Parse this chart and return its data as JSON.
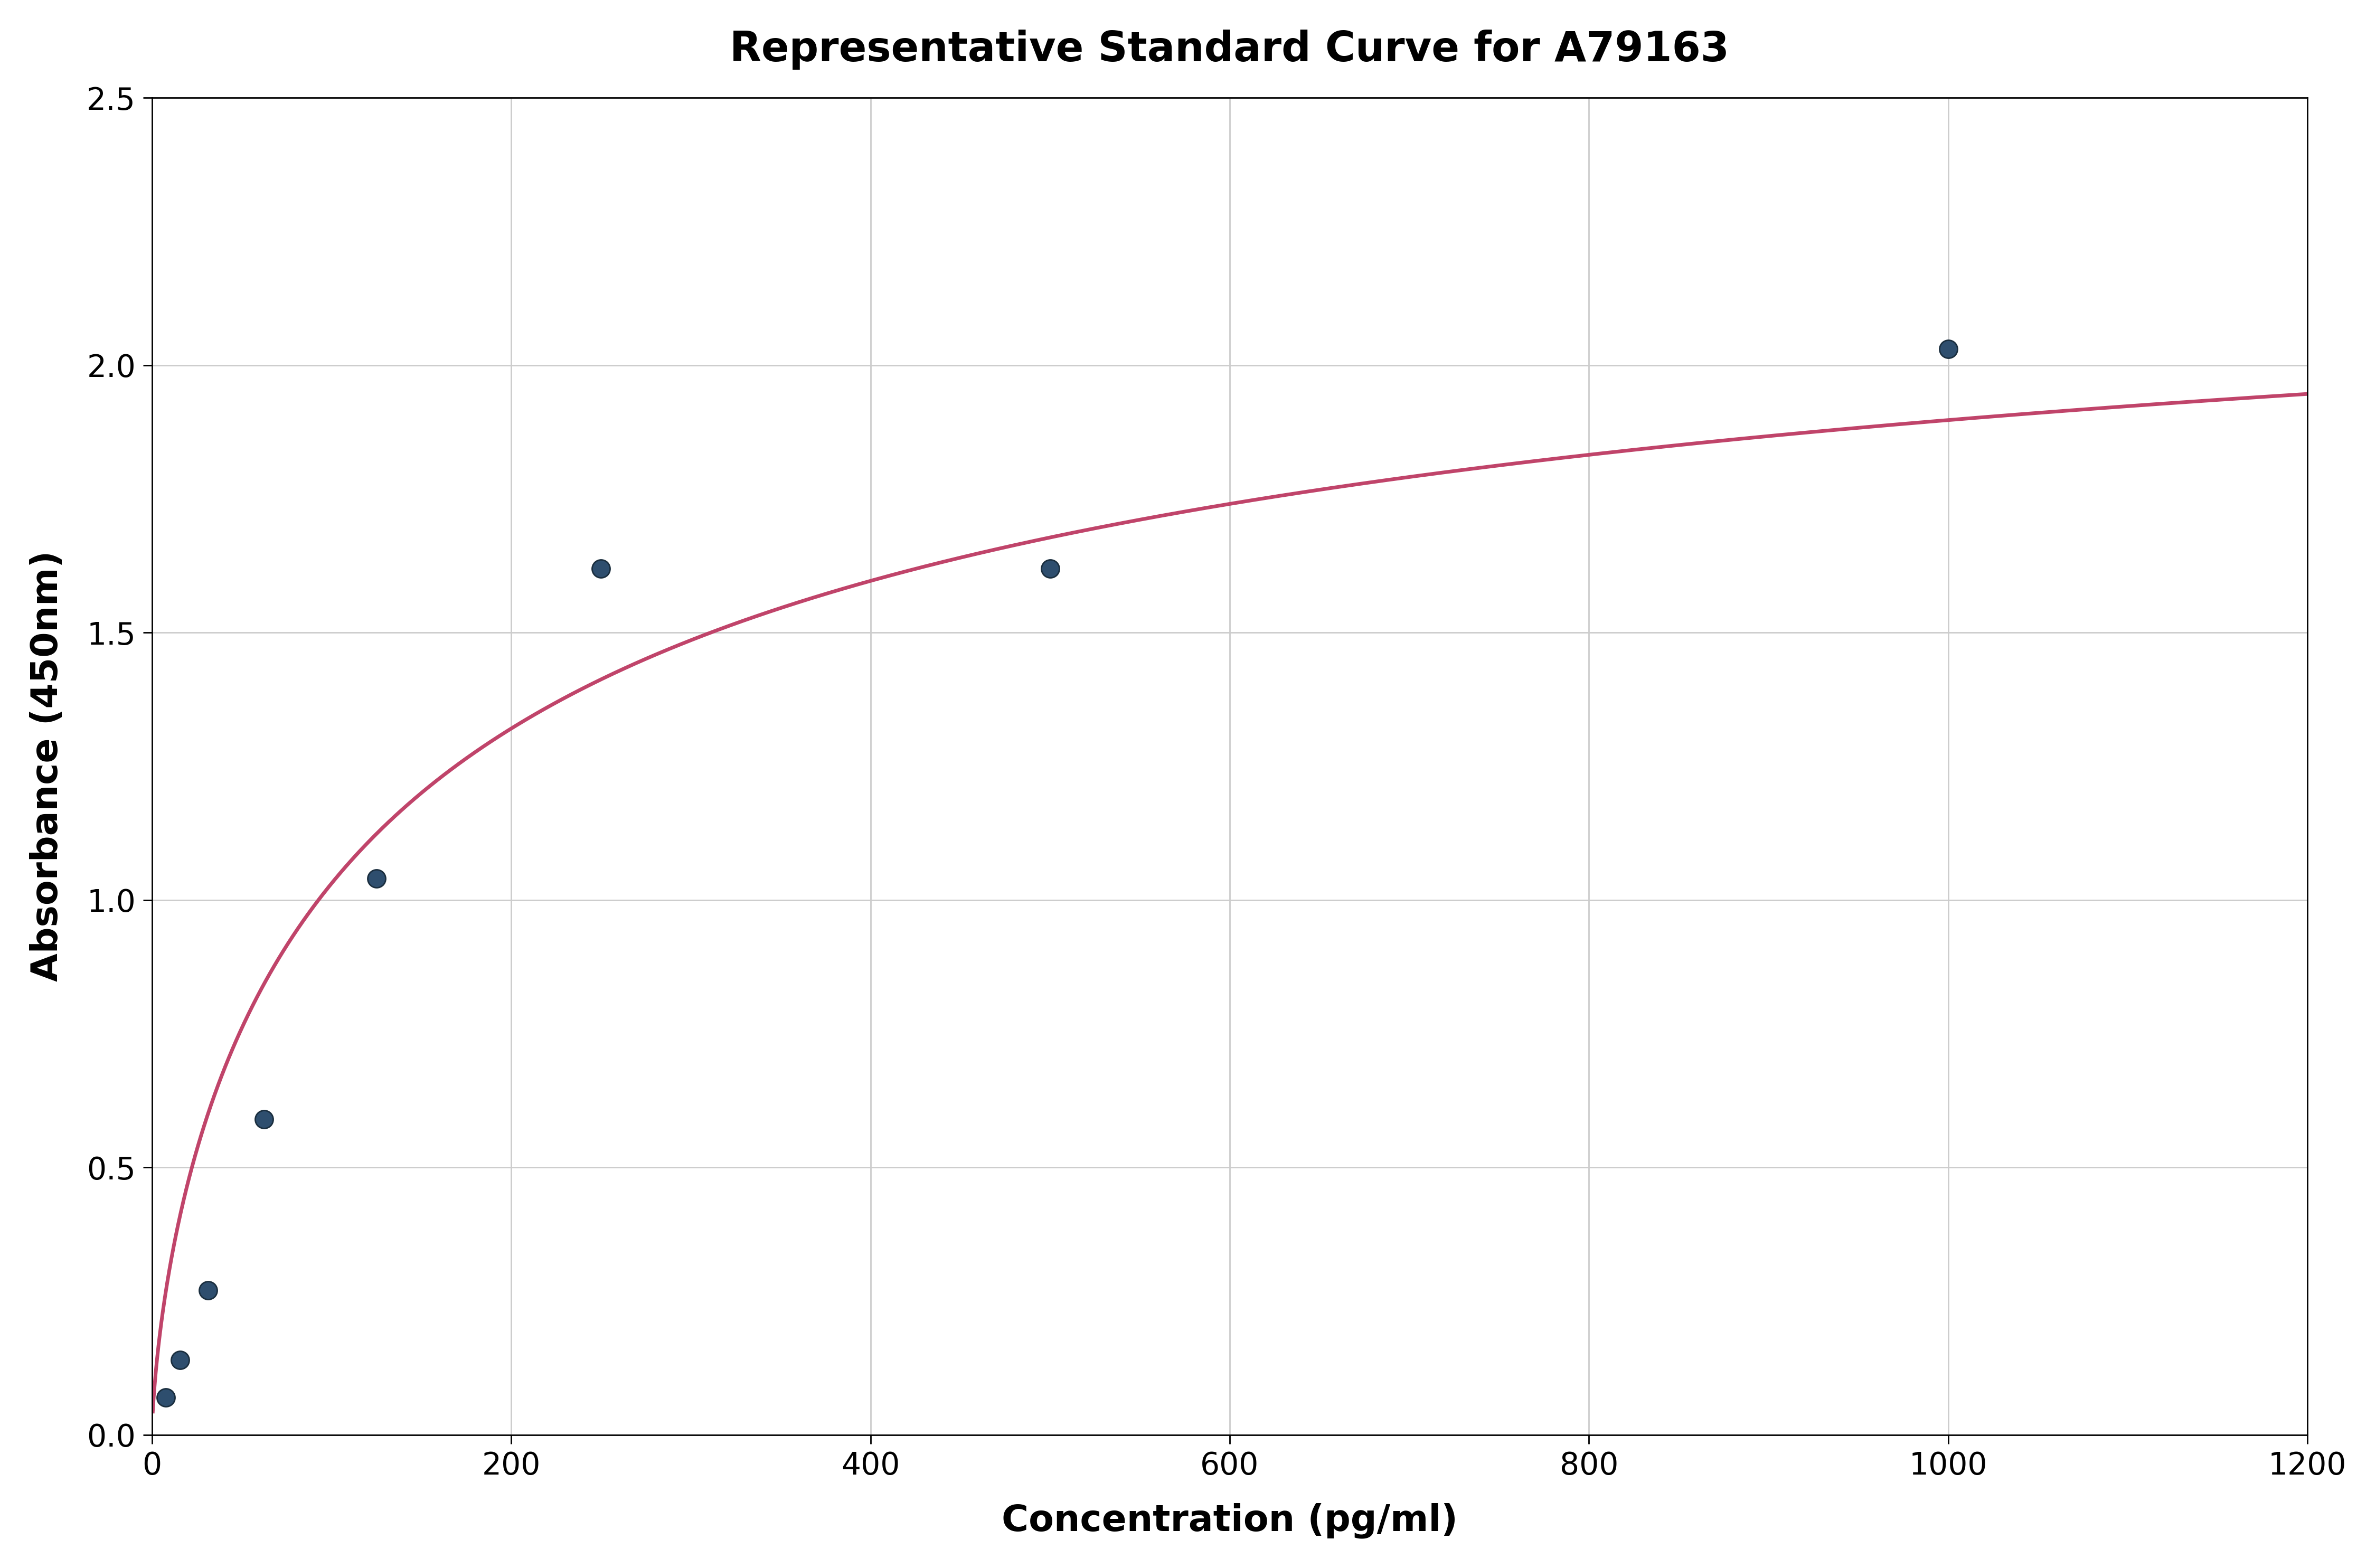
{
  "title": "Representative Standard Curve for A79163",
  "xlabel": "Concentration (pg/ml)",
  "ylabel": "Absorbance (450nm)",
  "xlim": [
    0,
    1200
  ],
  "ylim": [
    0,
    2.5
  ],
  "xticks": [
    0,
    200,
    400,
    600,
    800,
    1000,
    1200
  ],
  "yticks": [
    0.0,
    0.5,
    1.0,
    1.5,
    2.0,
    2.5
  ],
  "data_x": [
    7.8,
    15.6,
    31.25,
    62.5,
    125,
    250,
    500,
    1000
  ],
  "data_y": [
    0.07,
    0.14,
    0.27,
    0.59,
    1.04,
    1.62,
    1.62,
    2.03
  ],
  "curve_color": "#c0446a",
  "dot_color": "#2e4e6e",
  "dot_size": 600,
  "dot_linewidth": 2.0,
  "dot_edgecolor": "#1a2e3e",
  "title_fontsize": 56,
  "label_fontsize": 50,
  "tick_fontsize": 42,
  "title_fontweight": "bold",
  "label_fontweight": "bold",
  "grid_color": "#cccccc",
  "grid_linewidth": 2.0,
  "background_color": "#ffffff",
  "curve_linewidth": 5.0,
  "spine_linewidth": 2.0
}
